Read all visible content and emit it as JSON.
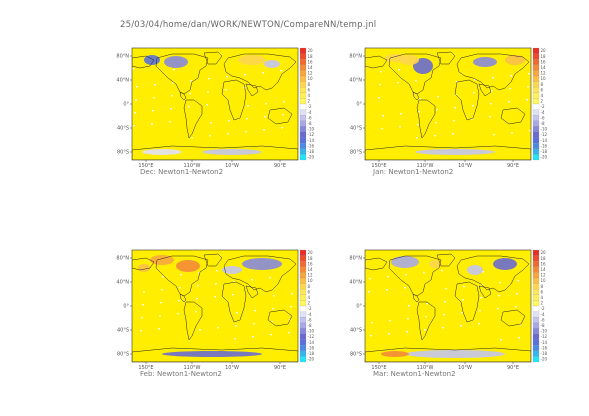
{
  "title": "25/03/04/home/dan/WORK/NEWTON/CompareNN/temp.jnl",
  "lat_ticks": [
    "80°S",
    "40°S",
    "0°",
    "40°N",
    "80°N"
  ],
  "lon_ticks": [
    "150°E",
    "110°W",
    "10°W",
    "90°E"
  ],
  "colorbar": {
    "levels": [
      "20",
      "18",
      "16",
      "14",
      "12",
      "10",
      "8",
      "6",
      "4",
      "2",
      "-2",
      "-4",
      "-6",
      "-8",
      "-10",
      "-12",
      "-14",
      "-16",
      "-18",
      "-20"
    ],
    "colors": [
      "#e8302a",
      "#ee4a2c",
      "#f06a30",
      "#f48a38",
      "#f8a640",
      "#fbbf48",
      "#fdd650",
      "#fee756",
      "#ffef5a",
      "#fff95a",
      "#ffffff",
      "#e0e0f6",
      "#c4c4ee",
      "#a8a8e4",
      "#8888da",
      "#6a6ad0",
      "#5a70dc",
      "#4a8ae6",
      "#36b4ee",
      "#22e4f4"
    ]
  },
  "panels": [
    {
      "id": "dec",
      "caption": "Dec: Newton1-Newton2"
    },
    {
      "id": "jan",
      "caption": "Jan: Newton1-Newton2"
    },
    {
      "id": "feb",
      "caption": "Feb: Newton1-Newton2"
    },
    {
      "id": "mar",
      "caption": "Mar: Newton1-Newton2"
    }
  ],
  "colors": {
    "ocean": "#ffee00",
    "land": "#ffffff",
    "coast": "#222222",
    "frame": "#333333"
  }
}
